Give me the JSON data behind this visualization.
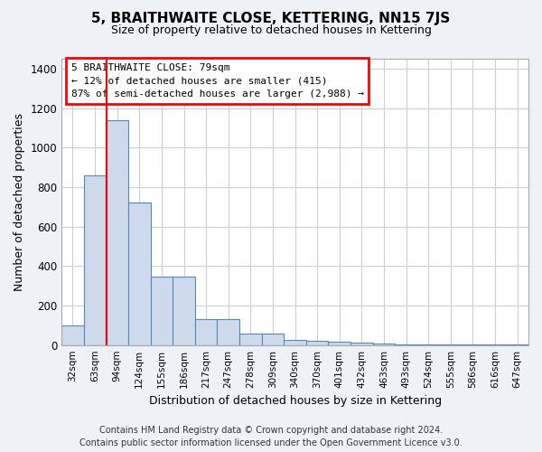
{
  "title": "5, BRAITHWAITE CLOSE, KETTERING, NN15 7JS",
  "subtitle": "Size of property relative to detached houses in Kettering",
  "xlabel": "Distribution of detached houses by size in Kettering",
  "ylabel": "Number of detached properties",
  "categories": [
    "32sqm",
    "63sqm",
    "94sqm",
    "124sqm",
    "155sqm",
    "186sqm",
    "217sqm",
    "247sqm",
    "278sqm",
    "309sqm",
    "340sqm",
    "370sqm",
    "401sqm",
    "432sqm",
    "463sqm",
    "493sqm",
    "524sqm",
    "555sqm",
    "586sqm",
    "616sqm",
    "647sqm"
  ],
  "values": [
    100,
    860,
    1140,
    720,
    345,
    345,
    130,
    130,
    60,
    60,
    25,
    20,
    15,
    10,
    8,
    3,
    2,
    1,
    1,
    1,
    1
  ],
  "bar_color": "#ccdaeb",
  "bar_edge_color": "#5588bb",
  "red_line_x": 1.52,
  "ylim": [
    0,
    1450
  ],
  "yticks": [
    0,
    200,
    400,
    600,
    800,
    1000,
    1200,
    1400
  ],
  "annotation_title": "5 BRAITHWAITE CLOSE: 79sqm",
  "annotation_line1": "← 12% of detached houses are smaller (415)",
  "annotation_line2": "87% of semi-detached houses are larger (2,988) →",
  "footer_line1": "Contains HM Land Registry data © Crown copyright and database right 2024.",
  "footer_line2": "Contains public sector information licensed under the Open Government Licence v3.0.",
  "background_color": "#eef2f7",
  "plot_background_color": "#ffffff",
  "grid_color": "#c8cfd8"
}
